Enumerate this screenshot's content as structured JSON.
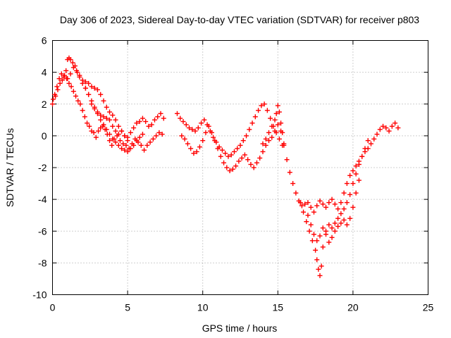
{
  "chart_data": {
    "type": "scatter",
    "title": "Day 306 of 2023, Sidereal Day-to-day VTEC variation (SDTVAR) for receiver p803",
    "xlabel": "GPS time / hours",
    "ylabel": "SDTVAR / TECUs",
    "xlim": [
      0,
      25
    ],
    "ylim": [
      -10,
      6
    ],
    "xticks": [
      0,
      5,
      10,
      15,
      20,
      25
    ],
    "yticks": [
      -10,
      -8,
      -6,
      -4,
      -2,
      0,
      2,
      4,
      6
    ],
    "grid": true,
    "marker": "+",
    "series": [
      {
        "name": "SDTVAR",
        "color": "#ff0000",
        "x": [
          0.0,
          0.15,
          0.3,
          0.45,
          0.6,
          0.75,
          0.9,
          1.0,
          1.1,
          1.2,
          1.35,
          1.5,
          1.65,
          1.8,
          2.0,
          2.2,
          2.4,
          2.6,
          2.8,
          3.0,
          3.2,
          3.4,
          3.6,
          3.8,
          4.0,
          4.2,
          4.4,
          4.6,
          4.8,
          5.0,
          5.2,
          5.4,
          5.6,
          5.8,
          6.0,
          6.2,
          6.4,
          6.6,
          6.8,
          7.0,
          7.2,
          7.4,
          0.05,
          0.2,
          0.35,
          0.5,
          0.65,
          0.8,
          0.95,
          1.1,
          1.25,
          1.4,
          1.55,
          1.7,
          1.85,
          2.0,
          2.15,
          2.3,
          2.45,
          2.6,
          2.75,
          2.9,
          3.05,
          3.2,
          3.35,
          3.5,
          3.65,
          3.8,
          3.95,
          4.1,
          4.3,
          4.5,
          4.7,
          4.9,
          5.1,
          5.3,
          5.5,
          5.7,
          5.9,
          6.1,
          6.3,
          6.5,
          6.7,
          6.9,
          7.1,
          7.3,
          1.0,
          1.2,
          1.4,
          1.6,
          1.8,
          2.0,
          2.2,
          2.4,
          2.6,
          2.8,
          3.0,
          3.2,
          3.4,
          3.6,
          3.8,
          4.0,
          4.2,
          4.4,
          4.6,
          4.8,
          5.0,
          2.2,
          2.4,
          2.6,
          2.8,
          3.0,
          3.2,
          3.4,
          3.6,
          3.8,
          4.0,
          4.2,
          4.4,
          4.6,
          4.8,
          5.0,
          5.2,
          5.4,
          5.6,
          5.8,
          6.0,
          8.3,
          8.5,
          8.7,
          8.9,
          9.1,
          9.3,
          9.5,
          9.7,
          9.9,
          10.1,
          10.3,
          10.5,
          10.7,
          10.9,
          11.1,
          11.3,
          11.5,
          11.7,
          11.9,
          12.1,
          12.3,
          12.5,
          12.7,
          12.9,
          13.1,
          13.3,
          13.5,
          13.7,
          13.9,
          14.1,
          14.3,
          14.5,
          14.7,
          14.9,
          15.1,
          15.3,
          8.6,
          8.8,
          9.0,
          9.2,
          9.4,
          9.6,
          9.8,
          10.0,
          10.2,
          10.4,
          10.6,
          10.8,
          11.0,
          11.2,
          11.4,
          11.6,
          11.8,
          12.0,
          12.2,
          12.4,
          12.6,
          12.8,
          13.0,
          13.2,
          13.4,
          13.6,
          13.8,
          14.0,
          14.2,
          14.4,
          14.6,
          14.8,
          15.0,
          15.2,
          15.4,
          14.0,
          14.2,
          14.4,
          14.6,
          14.8,
          14.9,
          15.0,
          15.1,
          15.2,
          15.3,
          15.4,
          15.6,
          15.8,
          16.0,
          16.2,
          16.4,
          16.6,
          16.8,
          17.0,
          17.2,
          17.4,
          17.6,
          17.8,
          18.0,
          18.2,
          18.4,
          18.6,
          18.8,
          19.0,
          19.2,
          19.4,
          19.6,
          19.8,
          20.0,
          20.2,
          20.4,
          20.6,
          20.8,
          21.0,
          21.2,
          21.4,
          21.6,
          21.8,
          22.0,
          22.2,
          22.4,
          22.6,
          22.8,
          23.0,
          16.5,
          16.7,
          16.9,
          17.1,
          17.3,
          17.5,
          17.6,
          17.7,
          17.8,
          17.9,
          18.0,
          18.2,
          18.4,
          18.6,
          18.8,
          19.0,
          19.2,
          19.4,
          19.6,
          19.8,
          20.0,
          20.2,
          20.4,
          20.6,
          20.8,
          21.0,
          17.0,
          17.2,
          17.4,
          17.6,
          17.8,
          18.0,
          18.2,
          18.4,
          18.6,
          18.8,
          19.0,
          19.2,
          19.4,
          19.6,
          19.8,
          20.0,
          20.2,
          20.4
        ],
        "y": [
          2.0,
          2.6,
          3.1,
          3.6,
          3.9,
          3.7,
          4.1,
          4.8,
          4.9,
          4.8,
          4.6,
          4.4,
          4.0,
          3.7,
          3.3,
          3.0,
          2.6,
          2.0,
          1.7,
          1.5,
          1.3,
          1.2,
          1.1,
          1.0,
          0.6,
          0.3,
          0.1,
          0.3,
          0.0,
          -0.1,
          0.2,
          0.5,
          0.8,
          0.9,
          1.1,
          0.9,
          0.6,
          0.7,
          1.0,
          1.2,
          1.4,
          1.1,
          2.3,
          2.5,
          2.9,
          3.3,
          3.5,
          3.8,
          3.6,
          3.3,
          3.1,
          2.8,
          2.5,
          2.2,
          2.0,
          1.6,
          1.2,
          0.8,
          0.6,
          0.3,
          0.2,
          -0.1,
          0.3,
          0.5,
          0.6,
          0.4,
          0.1,
          -0.3,
          -0.6,
          -0.2,
          0.0,
          -0.3,
          -0.5,
          -0.6,
          -0.8,
          -0.5,
          -0.2,
          -0.4,
          -0.6,
          -0.9,
          -0.6,
          -0.4,
          -0.2,
          0.0,
          0.2,
          0.1,
          3.6,
          3.9,
          4.3,
          4.1,
          3.8,
          3.5,
          3.4,
          3.3,
          3.1,
          3.0,
          2.9,
          2.6,
          2.2,
          1.8,
          1.5,
          1.3,
          1.0,
          0.6,
          0.3,
          0.0,
          -0.3,
          3.0,
          2.6,
          2.2,
          1.8,
          1.4,
          1.0,
          0.7,
          0.4,
          0.1,
          -0.2,
          -0.4,
          -0.6,
          -0.8,
          -0.9,
          -1.0,
          -0.8,
          -0.6,
          -0.3,
          -0.1,
          0.1,
          1.4,
          1.1,
          0.9,
          0.7,
          0.5,
          0.4,
          0.3,
          0.5,
          0.8,
          1.0,
          0.7,
          0.3,
          -0.1,
          -0.4,
          -0.7,
          -0.9,
          -1.1,
          -1.3,
          -1.2,
          -1.0,
          -0.8,
          -0.6,
          -0.3,
          0.0,
          0.4,
          0.8,
          1.2,
          1.6,
          1.9,
          2.0,
          1.6,
          1.1,
          0.6,
          0.2,
          -0.2,
          -0.6,
          0.0,
          -0.2,
          -0.5,
          -0.8,
          -1.1,
          -1.0,
          -0.7,
          -0.3,
          0.2,
          0.6,
          0.2,
          -0.3,
          -0.8,
          -1.3,
          -1.7,
          -2.0,
          -2.2,
          -2.1,
          -1.9,
          -1.6,
          -1.4,
          -1.2,
          -1.5,
          -1.8,
          -2.0,
          -1.7,
          -1.4,
          -1.0,
          -0.6,
          -0.3,
          -0.1,
          0.3,
          0.7,
          0.3,
          -0.5,
          -0.5,
          -0.2,
          0.2,
          0.6,
          1.0,
          1.4,
          1.9,
          1.5,
          0.8,
          0.2,
          -0.6,
          -1.5,
          -2.3,
          -3.0,
          -3.6,
          -4.1,
          -4.4,
          -4.3,
          -4.2,
          -4.5,
          -4.8,
          -4.4,
          -4.1,
          -4.3,
          -4.5,
          -4.2,
          -4.0,
          -4.3,
          -4.6,
          -4.2,
          -3.6,
          -3.0,
          -2.5,
          -2.2,
          -1.9,
          -1.6,
          -1.3,
          -1.0,
          -0.8,
          -0.5,
          -0.2,
          0.1,
          0.4,
          0.6,
          0.5,
          0.3,
          0.6,
          0.8,
          0.5,
          -4.2,
          -4.8,
          -5.4,
          -6.0,
          -6.6,
          -7.2,
          -7.8,
          -8.4,
          -8.8,
          -8.2,
          -7.0,
          -6.0,
          -5.6,
          -5.8,
          -5.5,
          -5.2,
          -4.9,
          -4.6,
          -4.2,
          -3.7,
          -3.0,
          -2.4,
          -1.8,
          -1.3,
          -0.8,
          -0.3,
          -5.0,
          -5.6,
          -6.2,
          -6.6,
          -6.3,
          -5.8,
          -6.2,
          -6.7,
          -6.4,
          -6.0,
          -5.7,
          -5.5,
          -5.3,
          -5.6,
          -5.2,
          -4.5,
          -3.6,
          -2.8
        ]
      }
    ]
  }
}
